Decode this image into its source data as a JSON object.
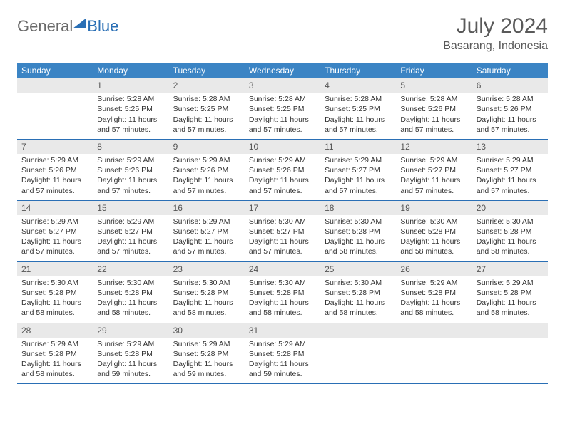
{
  "brand": {
    "part1": "General",
    "part2": "Blue"
  },
  "title": "July 2024",
  "location": "Basarang, Indonesia",
  "colors": {
    "header_bg": "#3b84c4",
    "header_text": "#ffffff",
    "daynum_bg": "#e9e9e9",
    "border": "#2a6fb5",
    "text": "#333333",
    "brand_gray": "#6a6a6a",
    "brand_blue": "#2a6fb5"
  },
  "day_headers": [
    "Sunday",
    "Monday",
    "Tuesday",
    "Wednesday",
    "Thursday",
    "Friday",
    "Saturday"
  ],
  "weeks": [
    {
      "nums": [
        "",
        "1",
        "2",
        "3",
        "4",
        "5",
        "6"
      ],
      "cells": [
        {
          "sunrise": "",
          "sunset": "",
          "daylight": ""
        },
        {
          "sunrise": "Sunrise: 5:28 AM",
          "sunset": "Sunset: 5:25 PM",
          "daylight": "Daylight: 11 hours and 57 minutes."
        },
        {
          "sunrise": "Sunrise: 5:28 AM",
          "sunset": "Sunset: 5:25 PM",
          "daylight": "Daylight: 11 hours and 57 minutes."
        },
        {
          "sunrise": "Sunrise: 5:28 AM",
          "sunset": "Sunset: 5:25 PM",
          "daylight": "Daylight: 11 hours and 57 minutes."
        },
        {
          "sunrise": "Sunrise: 5:28 AM",
          "sunset": "Sunset: 5:25 PM",
          "daylight": "Daylight: 11 hours and 57 minutes."
        },
        {
          "sunrise": "Sunrise: 5:28 AM",
          "sunset": "Sunset: 5:26 PM",
          "daylight": "Daylight: 11 hours and 57 minutes."
        },
        {
          "sunrise": "Sunrise: 5:28 AM",
          "sunset": "Sunset: 5:26 PM",
          "daylight": "Daylight: 11 hours and 57 minutes."
        }
      ]
    },
    {
      "nums": [
        "7",
        "8",
        "9",
        "10",
        "11",
        "12",
        "13"
      ],
      "cells": [
        {
          "sunrise": "Sunrise: 5:29 AM",
          "sunset": "Sunset: 5:26 PM",
          "daylight": "Daylight: 11 hours and 57 minutes."
        },
        {
          "sunrise": "Sunrise: 5:29 AM",
          "sunset": "Sunset: 5:26 PM",
          "daylight": "Daylight: 11 hours and 57 minutes."
        },
        {
          "sunrise": "Sunrise: 5:29 AM",
          "sunset": "Sunset: 5:26 PM",
          "daylight": "Daylight: 11 hours and 57 minutes."
        },
        {
          "sunrise": "Sunrise: 5:29 AM",
          "sunset": "Sunset: 5:26 PM",
          "daylight": "Daylight: 11 hours and 57 minutes."
        },
        {
          "sunrise": "Sunrise: 5:29 AM",
          "sunset": "Sunset: 5:27 PM",
          "daylight": "Daylight: 11 hours and 57 minutes."
        },
        {
          "sunrise": "Sunrise: 5:29 AM",
          "sunset": "Sunset: 5:27 PM",
          "daylight": "Daylight: 11 hours and 57 minutes."
        },
        {
          "sunrise": "Sunrise: 5:29 AM",
          "sunset": "Sunset: 5:27 PM",
          "daylight": "Daylight: 11 hours and 57 minutes."
        }
      ]
    },
    {
      "nums": [
        "14",
        "15",
        "16",
        "17",
        "18",
        "19",
        "20"
      ],
      "cells": [
        {
          "sunrise": "Sunrise: 5:29 AM",
          "sunset": "Sunset: 5:27 PM",
          "daylight": "Daylight: 11 hours and 57 minutes."
        },
        {
          "sunrise": "Sunrise: 5:29 AM",
          "sunset": "Sunset: 5:27 PM",
          "daylight": "Daylight: 11 hours and 57 minutes."
        },
        {
          "sunrise": "Sunrise: 5:29 AM",
          "sunset": "Sunset: 5:27 PM",
          "daylight": "Daylight: 11 hours and 57 minutes."
        },
        {
          "sunrise": "Sunrise: 5:30 AM",
          "sunset": "Sunset: 5:27 PM",
          "daylight": "Daylight: 11 hours and 57 minutes."
        },
        {
          "sunrise": "Sunrise: 5:30 AM",
          "sunset": "Sunset: 5:28 PM",
          "daylight": "Daylight: 11 hours and 58 minutes."
        },
        {
          "sunrise": "Sunrise: 5:30 AM",
          "sunset": "Sunset: 5:28 PM",
          "daylight": "Daylight: 11 hours and 58 minutes."
        },
        {
          "sunrise": "Sunrise: 5:30 AM",
          "sunset": "Sunset: 5:28 PM",
          "daylight": "Daylight: 11 hours and 58 minutes."
        }
      ]
    },
    {
      "nums": [
        "21",
        "22",
        "23",
        "24",
        "25",
        "26",
        "27"
      ],
      "cells": [
        {
          "sunrise": "Sunrise: 5:30 AM",
          "sunset": "Sunset: 5:28 PM",
          "daylight": "Daylight: 11 hours and 58 minutes."
        },
        {
          "sunrise": "Sunrise: 5:30 AM",
          "sunset": "Sunset: 5:28 PM",
          "daylight": "Daylight: 11 hours and 58 minutes."
        },
        {
          "sunrise": "Sunrise: 5:30 AM",
          "sunset": "Sunset: 5:28 PM",
          "daylight": "Daylight: 11 hours and 58 minutes."
        },
        {
          "sunrise": "Sunrise: 5:30 AM",
          "sunset": "Sunset: 5:28 PM",
          "daylight": "Daylight: 11 hours and 58 minutes."
        },
        {
          "sunrise": "Sunrise: 5:30 AM",
          "sunset": "Sunset: 5:28 PM",
          "daylight": "Daylight: 11 hours and 58 minutes."
        },
        {
          "sunrise": "Sunrise: 5:29 AM",
          "sunset": "Sunset: 5:28 PM",
          "daylight": "Daylight: 11 hours and 58 minutes."
        },
        {
          "sunrise": "Sunrise: 5:29 AM",
          "sunset": "Sunset: 5:28 PM",
          "daylight": "Daylight: 11 hours and 58 minutes."
        }
      ]
    },
    {
      "nums": [
        "28",
        "29",
        "30",
        "31",
        "",
        "",
        ""
      ],
      "cells": [
        {
          "sunrise": "Sunrise: 5:29 AM",
          "sunset": "Sunset: 5:28 PM",
          "daylight": "Daylight: 11 hours and 58 minutes."
        },
        {
          "sunrise": "Sunrise: 5:29 AM",
          "sunset": "Sunset: 5:28 PM",
          "daylight": "Daylight: 11 hours and 59 minutes."
        },
        {
          "sunrise": "Sunrise: 5:29 AM",
          "sunset": "Sunset: 5:28 PM",
          "daylight": "Daylight: 11 hours and 59 minutes."
        },
        {
          "sunrise": "Sunrise: 5:29 AM",
          "sunset": "Sunset: 5:28 PM",
          "daylight": "Daylight: 11 hours and 59 minutes."
        },
        {
          "sunrise": "",
          "sunset": "",
          "daylight": ""
        },
        {
          "sunrise": "",
          "sunset": "",
          "daylight": ""
        },
        {
          "sunrise": "",
          "sunset": "",
          "daylight": ""
        }
      ]
    }
  ]
}
